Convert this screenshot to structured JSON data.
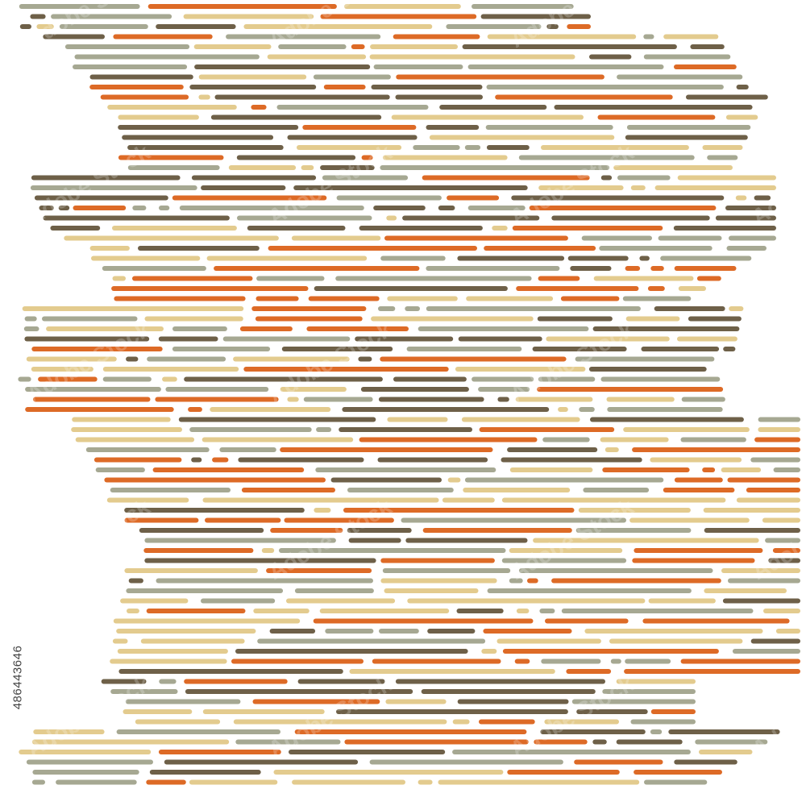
{
  "image": {
    "stock_id": "486443646",
    "watermark_text": "Adobe Stock",
    "background": "#ffffff"
  },
  "palette": {
    "orange": "#dd6a26",
    "sage": "#a6a892",
    "brown": "#6e6048",
    "sand": "#e3cb8e"
  }
}
